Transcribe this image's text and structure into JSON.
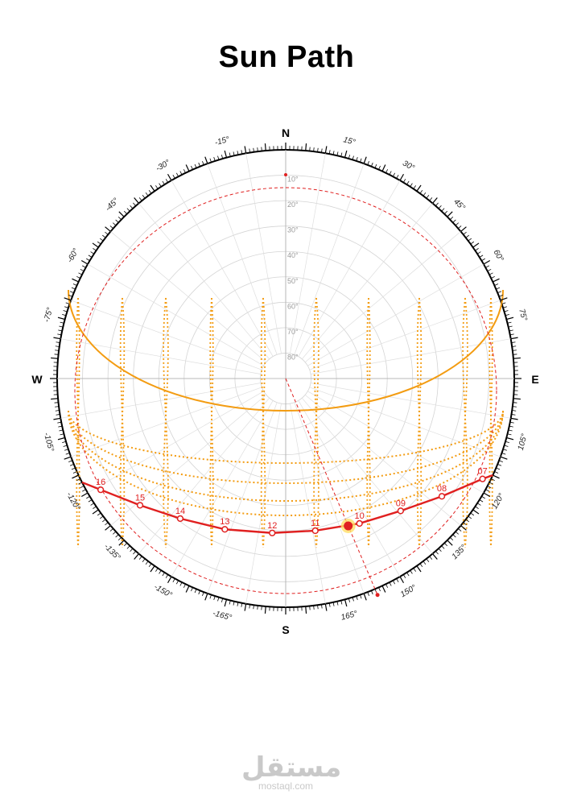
{
  "title": "Sun Path",
  "watermark": {
    "arabic": "مستقل",
    "latin": "mostaql.com"
  },
  "chart_data": {
    "type": "polar-sun-path",
    "cardinals": {
      "n": "N",
      "e": "E",
      "s": "S",
      "w": "W"
    },
    "azimuth_labels": [
      {
        "az": 15,
        "text": "15°"
      },
      {
        "az": 30,
        "text": "30°"
      },
      {
        "az": 45,
        "text": "45°"
      },
      {
        "az": 60,
        "text": "60°"
      },
      {
        "az": 75,
        "text": "75°"
      },
      {
        "az": 105,
        "text": "105°"
      },
      {
        "az": 120,
        "text": "120°"
      },
      {
        "az": 135,
        "text": "135°"
      },
      {
        "az": 150,
        "text": "150°"
      },
      {
        "az": 165,
        "text": "165°"
      },
      {
        "az": -15,
        "text": "-15°"
      },
      {
        "az": -30,
        "text": "-30°"
      },
      {
        "az": -45,
        "text": "-45°"
      },
      {
        "az": -60,
        "text": "-60°"
      },
      {
        "az": -75,
        "text": "-75°"
      },
      {
        "az": -105,
        "text": "-105°"
      },
      {
        "az": -120,
        "text": "-120°"
      },
      {
        "az": -135,
        "text": "-135°"
      },
      {
        "az": -150,
        "text": "-150°"
      },
      {
        "az": -165,
        "text": "-165°"
      }
    ],
    "altitude_labels": [
      {
        "alt": 10,
        "text": "10°"
      },
      {
        "alt": 20,
        "text": "20°"
      },
      {
        "alt": 30,
        "text": "30°"
      },
      {
        "alt": 40,
        "text": "40°"
      },
      {
        "alt": 50,
        "text": "50°"
      },
      {
        "alt": 60,
        "text": "60°"
      },
      {
        "alt": 70,
        "text": "70°"
      },
      {
        "alt": 80,
        "text": "80°"
      }
    ],
    "selected_day_path": [
      {
        "hour": "07",
        "az": 117,
        "alt": 3
      },
      {
        "hour": "08",
        "az": 127,
        "alt": 13
      },
      {
        "hour": "09",
        "az": 139,
        "alt": 21
      },
      {
        "hour": "10",
        "az": 153,
        "alt": 26
      },
      {
        "hour": "11",
        "az": 169,
        "alt": 29
      },
      {
        "hour": "12",
        "az": -175,
        "alt": 29
      },
      {
        "hour": "13",
        "az": -158,
        "alt": 26
      },
      {
        "hour": "14",
        "az": -143,
        "alt": 21
      },
      {
        "hour": "15",
        "az": -131,
        "alt": 14
      },
      {
        "hour": "16",
        "az": -121,
        "alt": 5
      }
    ],
    "current_sun": {
      "az": 157,
      "alt": 27
    },
    "sun_direction_line": {
      "az": 157
    },
    "grid": true
  }
}
